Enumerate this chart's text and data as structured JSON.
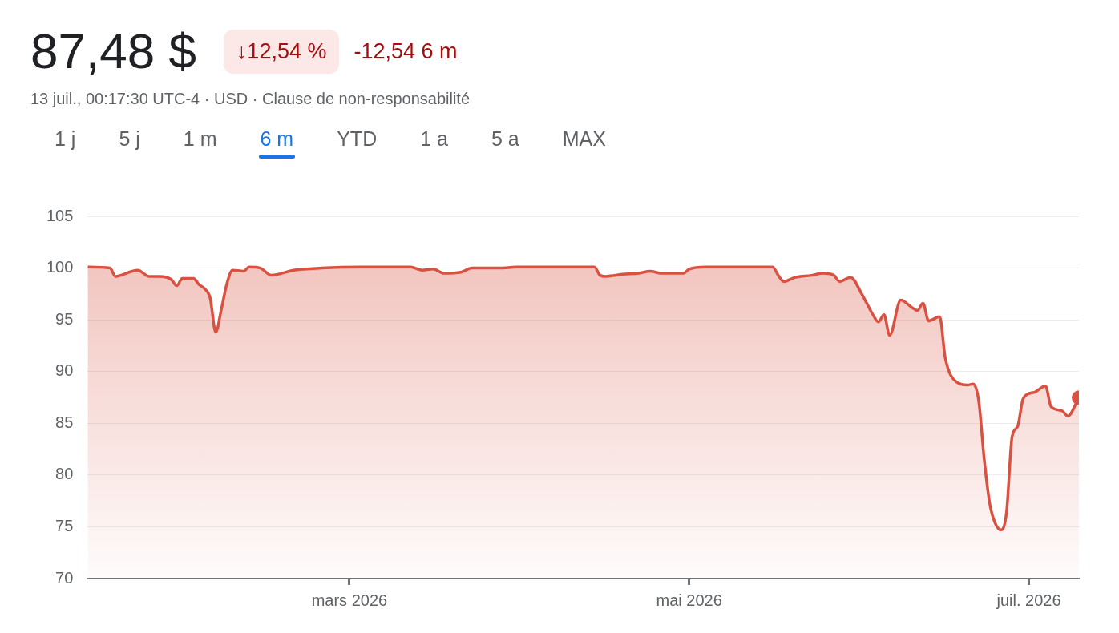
{
  "chart_data": {
    "type": "area",
    "title": "87,48 $",
    "subtitle": "13 juil., 00:17:30 UTC-4 · USD · Clause de non-responsabilité",
    "annotations": [
      "↓12,54 %",
      "-12,54 6 m",
      "1 j",
      "5 j",
      "1 m",
      "6 m",
      "YTD",
      "1 a",
      "5 a",
      "MAX"
    ],
    "x": [
      "2026-01-13",
      "2026-01-17",
      "2026-01-18",
      "2026-01-21",
      "2026-01-22",
      "2026-01-24",
      "2026-01-26",
      "2026-01-28",
      "2026-01-29",
      "2026-01-30",
      "2026-02-01",
      "2026-02-02",
      "2026-02-03",
      "2026-02-04",
      "2026-02-05",
      "2026-02-06",
      "2026-02-07",
      "2026-02-08",
      "2026-02-10",
      "2026-02-11",
      "2026-02-13",
      "2026-02-15",
      "2026-02-19",
      "2026-02-24",
      "2026-03-03",
      "2026-03-12",
      "2026-03-14",
      "2026-03-16",
      "2026-03-18",
      "2026-03-21",
      "2026-03-23",
      "2026-03-28",
      "2026-03-31",
      "2026-04-08",
      "2026-04-14",
      "2026-04-15",
      "2026-04-16",
      "2026-04-19",
      "2026-04-22",
      "2026-04-24",
      "2026-04-26",
      "2026-04-30",
      "2026-05-01",
      "2026-05-04",
      "2026-05-10",
      "2026-05-16",
      "2026-05-17",
      "2026-05-18",
      "2026-05-20",
      "2026-05-23",
      "2026-05-25",
      "2026-05-27",
      "2026-05-28",
      "2026-05-30",
      "2026-06-01",
      "2026-06-02",
      "2026-06-03",
      "2026-06-04",
      "2026-06-05",
      "2026-06-06",
      "2026-06-08",
      "2026-06-10",
      "2026-06-11",
      "2026-06-12",
      "2026-06-13",
      "2026-06-15",
      "2026-06-16",
      "2026-06-18",
      "2026-06-20",
      "2026-06-21",
      "2026-06-22",
      "2026-06-23",
      "2026-06-24",
      "2026-06-25",
      "2026-06-26",
      "2026-06-27",
      "2026-06-28",
      "2026-06-29",
      "2026-06-30",
      "2026-07-02",
      "2026-07-04",
      "2026-07-05",
      "2026-07-07",
      "2026-07-08",
      "2026-07-10"
    ],
    "series": [
      {
        "color": "#d95140",
        "values": [
          100.1,
          100.0,
          99.2,
          99.7,
          99.8,
          99.2,
          99.2,
          98.9,
          98.3,
          99.0,
          99.0,
          98.4,
          98.0,
          97.1,
          93.8,
          96.0,
          98.5,
          99.8,
          99.7,
          100.1,
          100.0,
          99.3,
          99.8,
          100.0,
          100.1,
          100.1,
          99.8,
          99.9,
          99.5,
          99.6,
          100.0,
          100.0,
          100.1,
          100.1,
          100.1,
          99.3,
          99.2,
          99.4,
          99.5,
          99.7,
          99.5,
          99.5,
          99.9,
          100.1,
          100.1,
          100.1,
          99.3,
          98.7,
          99.1,
          99.3,
          99.5,
          99.3,
          98.7,
          99.1,
          97.5,
          96.5,
          95.5,
          94.8,
          95.5,
          93.5,
          96.9,
          96.2,
          95.9,
          96.6,
          94.9,
          95.3,
          91.3,
          89.0,
          88.7,
          88.8,
          87.2,
          81.5,
          77.2,
          75.3,
          74.7,
          76.4,
          83.7,
          84.7,
          87.4,
          88.0,
          88.6,
          86.6,
          86.2,
          85.7,
          87.48
        ]
      }
    ],
    "xlim": [
      "2026-01-13",
      "2026-07-10"
    ],
    "xticks": [
      {
        "value": "2026-03-01",
        "label": "mars 2026"
      },
      {
        "value": "2026-05-01",
        "label": "mai 2026"
      },
      {
        "value": "2026-07-01",
        "label": "juil. 2026"
      }
    ],
    "ylim": [
      70,
      105
    ],
    "yticks": [
      70,
      75,
      80,
      85,
      90,
      95,
      100,
      105
    ],
    "grid": "y",
    "legend": false
  }
}
